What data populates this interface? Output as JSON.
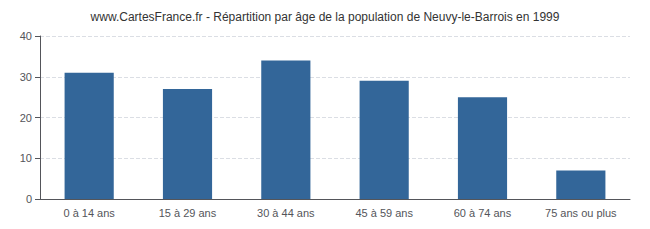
{
  "chart_data": {
    "type": "bar",
    "title": "www.CartesFrance.fr - Répartition par âge de la population de Neuvy-le-Barrois en 1999",
    "categories": [
      "0 à 14 ans",
      "15 à 29 ans",
      "30 à 44 ans",
      "45 à 59 ans",
      "60 à 74 ans",
      "75 ans ou plus"
    ],
    "values": [
      31,
      27,
      34,
      29,
      25,
      7
    ],
    "color": "#336699",
    "ylim": [
      0,
      40
    ],
    "yticks": [
      0,
      10,
      20,
      30,
      40
    ],
    "grid": true
  }
}
